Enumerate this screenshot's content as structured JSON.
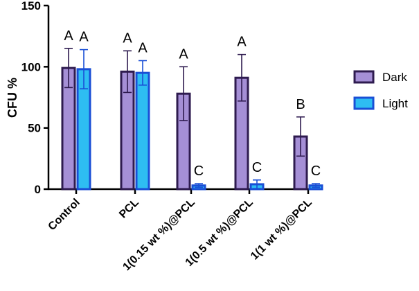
{
  "chart_data": {
    "type": "bar",
    "categories": [
      "Control",
      "PCL",
      "1(0.15 wt %)@PCL",
      "1(0.5 wt %)@PCL",
      "1(1 wt %)@PCL"
    ],
    "series": [
      {
        "name": "Dark",
        "values": [
          99,
          96,
          78,
          91,
          43
        ],
        "errors": [
          16,
          17,
          22,
          19,
          16
        ],
        "letters": [
          "A",
          "A",
          "A",
          "A",
          "B"
        ],
        "color": "#a58fd6",
        "stroke": "#2e1b4f"
      },
      {
        "name": "Light",
        "values": [
          98,
          95,
          3,
          4,
          3
        ],
        "errors": [
          16,
          10,
          1.5,
          3.5,
          1.5
        ],
        "letters": [
          "A",
          "A",
          "C",
          "C",
          "C"
        ],
        "color": "#2ebdf2",
        "stroke": "#1a4fd6"
      }
    ],
    "ylabel": "CFU %",
    "yticks": [
      0,
      50,
      100,
      150
    ],
    "ylim": [
      0,
      150
    ],
    "legend": "right",
    "grid": false
  }
}
